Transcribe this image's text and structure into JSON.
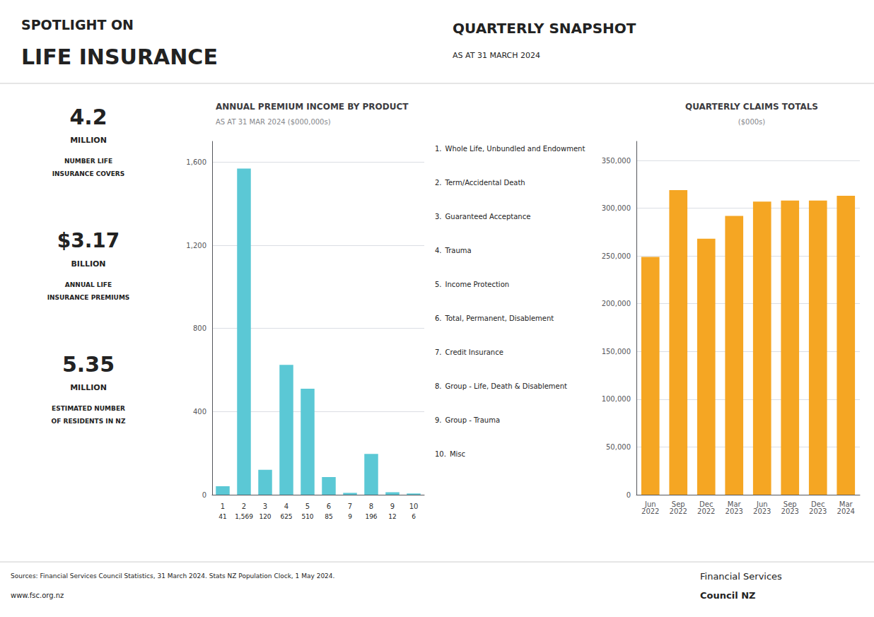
{
  "annotations": [
    "SPOTLIGHT ON",
    "LIFE INSURANCE",
    "QUARTERLY SNAPSHOT",
    "AS AT 31 MARCH 2024",
    "4.2",
    "MILLION",
    "NUMBER LIFE",
    "INSURANCE COVERS",
    "$3.17",
    "BILLION",
    "ANNUAL LIFE",
    "INSURANCE PREMIUMS",
    "5.35",
    "MILLION",
    "ESTIMATED NUMBER",
    "OF RESIDENTS IN NZ",
    "Sources: Financial Services Council Statistics, 31 March 2024. Stats NZ Population Clock, 1 May 2024.",
    "www.fsc.org.nz",
    "Financial Services",
    "Council NZ"
  ],
  "chart_data": [
    {
      "type": "bar",
      "title": "ANNUAL PREMIUM INCOME BY PRODUCT",
      "subtitle": "AS AT 31 MAR 2024 ($000,000s)",
      "categories": [
        1,
        2,
        3,
        4,
        5,
        6,
        7,
        8,
        9,
        10
      ],
      "values": [
        41,
        1569,
        120,
        625,
        510,
        85,
        9,
        196,
        12,
        6
      ],
      "value_labels": [
        "41",
        "1,569",
        "120",
        "625",
        "510",
        "85",
        "9",
        "196",
        "12",
        "6"
      ],
      "data_labels": true,
      "color": "#5bc8d5",
      "ylim": [
        0,
        1700
      ],
      "yticks": [
        0,
        400,
        800,
        {
          "value": 1200,
          "label": "1,200"
        },
        {
          "value": 1600,
          "label": "1,600"
        }
      ],
      "grid": true,
      "annotations": [
        "1. Whole Life, Unbundled and Endowment",
        "2. Term/Accidental Death",
        "3. Guaranteed Acceptance",
        "4. Trauma",
        "5. Income Protection",
        "6. Total, Permanent, Disablement",
        "7. Credit Insurance",
        "8. Group - Life, Death & Disablement",
        "9. Group - Trauma",
        "10. Misc"
      ]
    },
    {
      "type": "bar",
      "title": "QUARTERLY CLAIMS TOTALS",
      "subtitle": "($000s)",
      "categories": [
        "Jun\n2022",
        "Sep\n2022",
        "Dec\n2022",
        "Mar\n2023",
        "Jun\n2023",
        "Sep\n2023",
        "Dec\n2023",
        "Mar\n2024"
      ],
      "values": [
        249000,
        319000,
        268000,
        292000,
        307000,
        308000,
        308000,
        313000
      ],
      "color": "#f5a623",
      "ylim": [
        0,
        370000
      ],
      "yticks": [
        0,
        {
          "value": 50000,
          "label": "50,000"
        },
        {
          "value": 100000,
          "label": "100,000"
        },
        {
          "value": 150000,
          "label": "150,000"
        },
        {
          "value": 200000,
          "label": "200,000"
        },
        {
          "value": 250000,
          "label": "250,000"
        },
        {
          "value": 300000,
          "label": "300,000"
        },
        {
          "value": 350000,
          "label": "350,000"
        }
      ],
      "grid": true
    }
  ]
}
